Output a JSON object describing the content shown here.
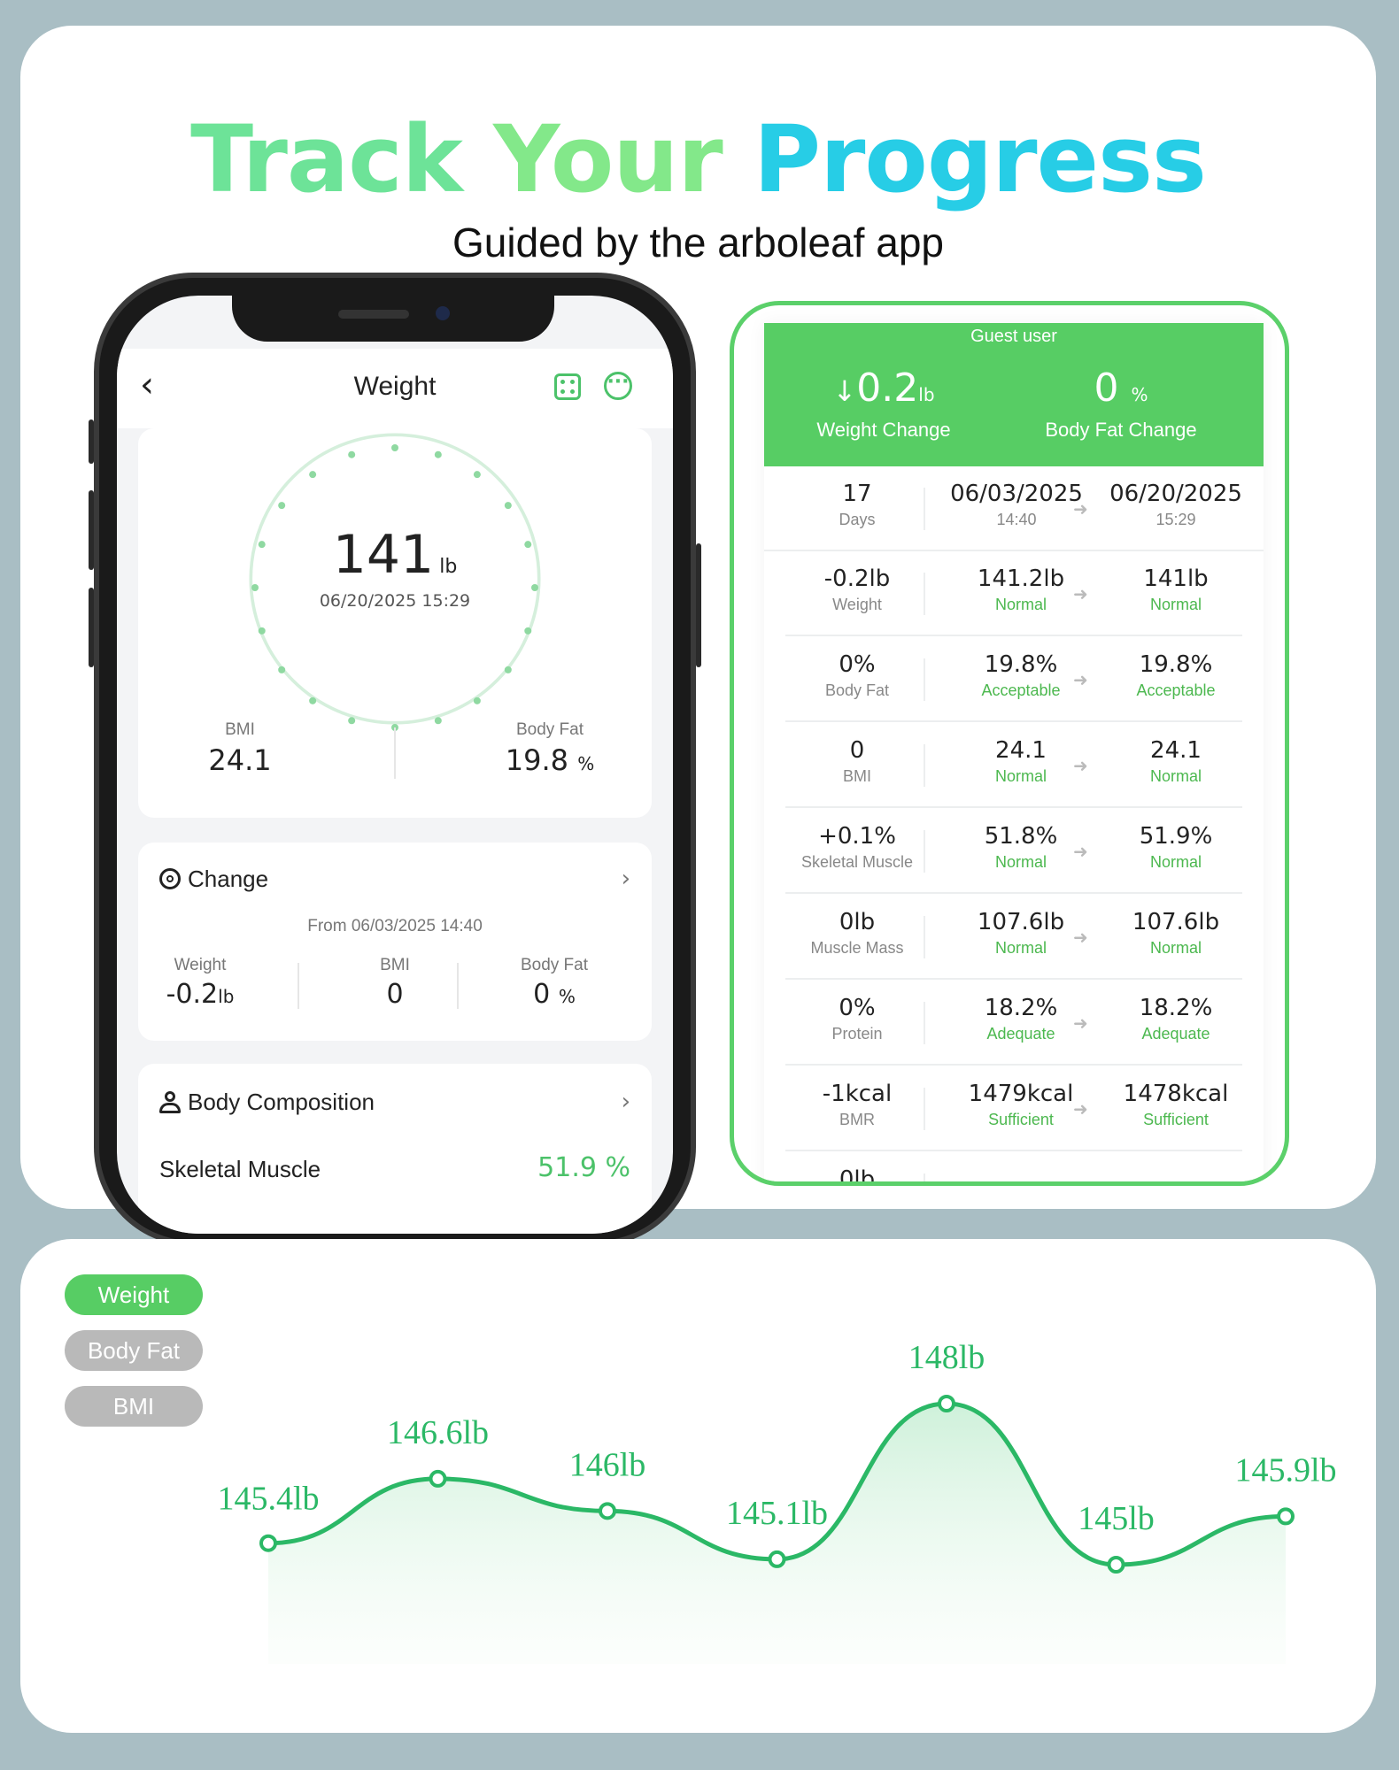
{
  "hero": {
    "title_part1": "Track ",
    "title_part2": "Your ",
    "title_part3": "Progress",
    "subtitle": "Guided by the arboleaf app"
  },
  "phone": {
    "back_icon": "chevron-left-icon",
    "title": "Weight",
    "weight_value": "141",
    "weight_unit": "lb",
    "weight_datetime": "06/20/2025 15:29",
    "bmi_label": "BMI",
    "bmi_value": "24.1",
    "bodyfat_label": "Body Fat",
    "bodyfat_value": "19.8",
    "bodyfat_unit": "%",
    "change": {
      "title": "Change",
      "from": "From 06/03/2025 14:40",
      "weight_label": "Weight",
      "weight_value": "-0.2",
      "weight_unit": "lb",
      "bmi_label": "BMI",
      "bmi_value": "0",
      "bodyfat_label": "Body Fat",
      "bodyfat_value": "0",
      "bodyfat_unit": "%"
    },
    "composition": {
      "title": "Body Composition",
      "first_label": "Skeletal Muscle",
      "first_value": "51.9 %"
    }
  },
  "report": {
    "guest": "Guest user",
    "weight_change_value": "0.2",
    "weight_change_unit": "lb",
    "weight_change_label": "Weight Change",
    "bodyfat_change_value": "0",
    "bodyfat_change_unit": "%",
    "bodyfat_change_label": "Body Fat Change",
    "period": {
      "days": "17",
      "days_label": "Days",
      "from_date": "06/03/2025",
      "from_time": "14:40",
      "to_date": "06/20/2025",
      "to_time": "15:29"
    },
    "rows": [
      {
        "diff": "-0.2lb",
        "name": "Weight",
        "before": "141.2lb",
        "before_status": "Normal",
        "after": "141lb",
        "after_status": "Normal"
      },
      {
        "diff": "0%",
        "name": "Body Fat",
        "before": "19.8%",
        "before_status": "Acceptable",
        "after": "19.8%",
        "after_status": "Acceptable"
      },
      {
        "diff": "0",
        "name": "BMI",
        "before": "24.1",
        "before_status": "Normal",
        "after": "24.1",
        "after_status": "Normal"
      },
      {
        "diff": "+0.1%",
        "name": "Skeletal Muscle",
        "before": "51.8%",
        "before_status": "Normal",
        "after": "51.9%",
        "after_status": "Normal"
      },
      {
        "diff": "0lb",
        "name": "Muscle Mass",
        "before": "107.6lb",
        "before_status": "Normal",
        "after": "107.6lb",
        "after_status": "Normal"
      },
      {
        "diff": "0%",
        "name": "Protein",
        "before": "18.2%",
        "before_status": "Adequate",
        "after": "18.2%",
        "after_status": "Adequate"
      },
      {
        "diff": "-1kcal",
        "name": "BMR",
        "before": "1479kcal",
        "before_status": "Sufficient",
        "after": "1478kcal",
        "after_status": "Sufficient"
      },
      {
        "diff": "0lb",
        "name": "",
        "before": "",
        "before_status": "",
        "after": "",
        "after_status": ""
      }
    ]
  },
  "tabs": [
    "Weight",
    "Body Fat",
    "BMI"
  ],
  "colors": {
    "accent": "#57cd64",
    "line": "#2bb866",
    "pill_inactive": "#b9b9b9"
  },
  "chart_data": {
    "type": "area",
    "series": [
      {
        "values": [
          145.4,
          146.6,
          146,
          145.1,
          148,
          145,
          145.9
        ]
      }
    ],
    "labels": [
      "145.4lb",
      "146.6lb",
      "146lb",
      "145.1lb",
      "148lb",
      "145lb",
      "145.9lb"
    ]
  }
}
